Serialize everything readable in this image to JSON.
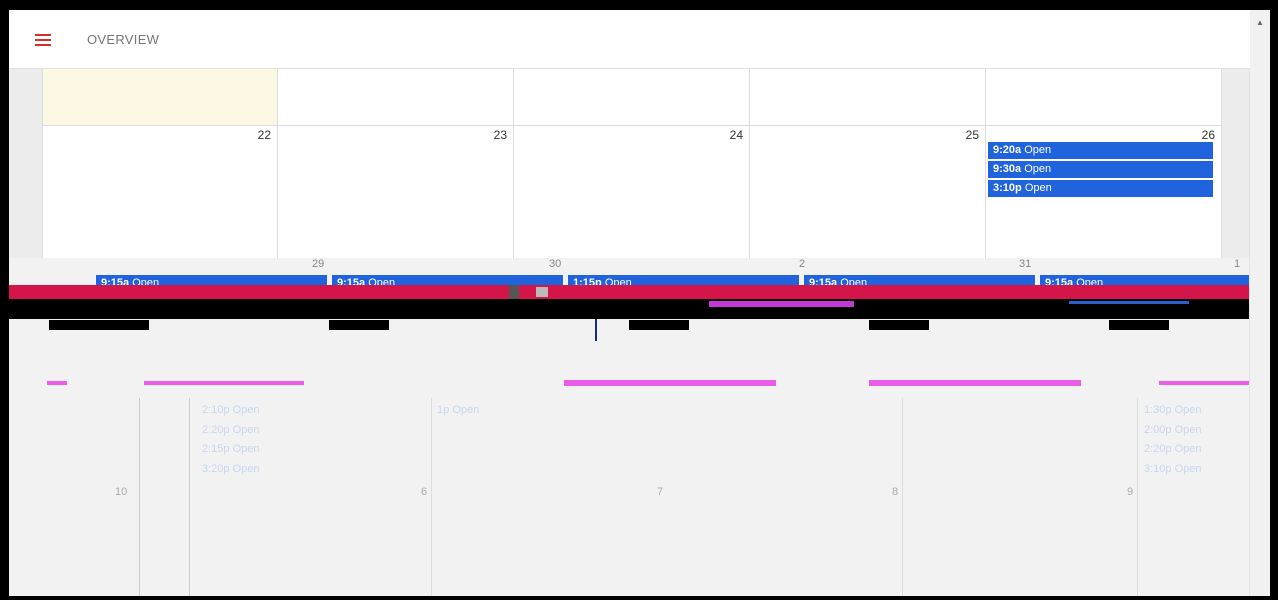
{
  "header": {
    "title": "OVERVIEW"
  },
  "weeks": [
    {
      "days": [
        {
          "num": ""
        },
        {
          "num": ""
        },
        {
          "num": ""
        },
        {
          "num": ""
        },
        {
          "num": ""
        }
      ]
    },
    {
      "days": [
        {
          "num": "22",
          "events": []
        },
        {
          "num": "23",
          "events": []
        },
        {
          "num": "24",
          "events": []
        },
        {
          "num": "25",
          "events": []
        },
        {
          "num": "26",
          "events": [
            {
              "time": "9:20a",
              "label": "Open"
            },
            {
              "time": "9:30a",
              "label": "Open"
            },
            {
              "time": "3:10p",
              "label": "Open"
            }
          ]
        }
      ]
    },
    {
      "days": [
        {
          "num": "29",
          "events": [
            {
              "time": "9:15a",
              "label": "Open"
            }
          ]
        },
        {
          "num": "30",
          "events": [
            {
              "time": "9:15a",
              "label": "Open"
            }
          ]
        },
        {
          "num": "31",
          "events": [
            {
              "time": "1:15p",
              "label": "Open"
            }
          ]
        },
        {
          "num": "1",
          "events": [
            {
              "time": "9:15a",
              "label": "Open"
            }
          ]
        },
        {
          "num": "2",
          "events": [
            {
              "time": "9:15a",
              "label": "Open"
            }
          ]
        }
      ]
    }
  ],
  "faint": {
    "week4": [
      {
        "time": "2:10p",
        "label": "Open"
      },
      {
        "time": "2:20p",
        "label": "Open"
      },
      {
        "time": "2:15p",
        "label": "Open"
      },
      {
        "time": "3:20p",
        "label": "Open"
      },
      {
        "time": "1p",
        "label": "Open"
      },
      {
        "time": "1:30p",
        "label": "Open"
      },
      {
        "time": "2:00p",
        "label": "Open"
      },
      {
        "time": "2:20p",
        "label": "Open"
      },
      {
        "time": "3:10p",
        "label": "Open"
      }
    ],
    "nums": [
      "10",
      "6",
      "7",
      "8",
      "9"
    ]
  }
}
